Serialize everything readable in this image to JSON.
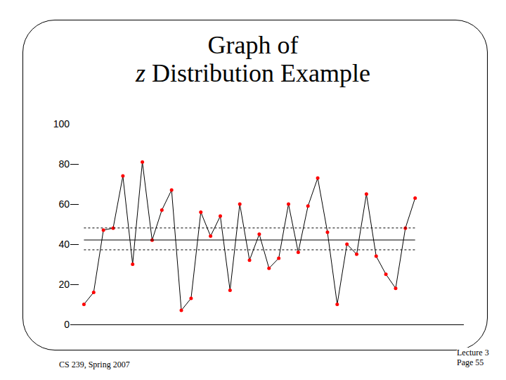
{
  "chart_data": {
    "type": "line",
    "title": "Graph of\nz Distribution Example",
    "x": [
      1,
      2,
      3,
      4,
      5,
      6,
      7,
      8,
      9,
      10,
      11,
      12,
      13,
      14,
      15,
      16,
      17,
      18,
      19,
      20,
      21,
      22,
      23,
      24,
      25,
      26,
      27,
      28,
      29,
      30,
      31,
      32,
      33,
      34,
      35
    ],
    "values": [
      10,
      16,
      47,
      48,
      74,
      30,
      81,
      42,
      57,
      67,
      7,
      13,
      56,
      44,
      54,
      17,
      60,
      32,
      45,
      28,
      33,
      60,
      36,
      59,
      73,
      46,
      10,
      40,
      35,
      65,
      34,
      25,
      18,
      48,
      63
    ],
    "color": "#ff0000",
    "marker": "circle",
    "mean": 42.1,
    "confidence_interval": [
      37.2,
      48.1
    ],
    "xlim": [
      -0.4,
      40
    ],
    "ylim": [
      0,
      100
    ],
    "yticks": [
      0,
      20,
      40,
      60,
      80,
      100
    ],
    "tick_labels": "y",
    "grid": false
  },
  "slide": {
    "course": "CS 239, Spring 2007",
    "lecture": "Lecture 3",
    "page": "Page 55"
  }
}
